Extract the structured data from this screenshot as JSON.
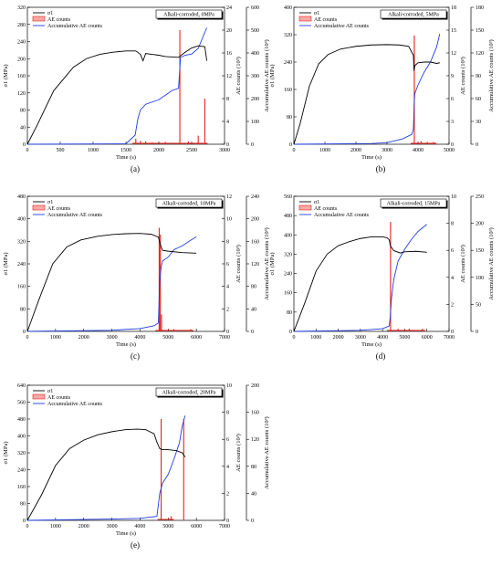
{
  "chart_data": [
    {
      "type": "line",
      "caption": "(a)",
      "condition_label": "Alkali-corroded, 0MPa",
      "legend": [
        "σ1",
        "AE counts",
        "Accumulative AE counts"
      ],
      "xlabel": "Time (s)",
      "ylabel_left": "σ1 (MPa)",
      "ylabel_mid": "AE counts (10³)",
      "ylabel_right": "Accumulative AE counts (10³)",
      "xlim": [
        0,
        3000
      ],
      "xticks": [
        0,
        500,
        1000,
        1500,
        2000,
        2500,
        3000
      ],
      "ylim_left": [
        0,
        320
      ],
      "yticks_left": [
        0,
        40,
        80,
        120,
        160,
        200,
        240,
        280,
        320
      ],
      "ylim_mid": [
        0,
        24
      ],
      "yticks_mid": [
        0,
        4,
        8,
        12,
        16,
        20,
        24
      ],
      "ylim_right": [
        0,
        600
      ],
      "yticks_right": [
        0,
        100,
        200,
        300,
        400,
        500,
        600
      ],
      "stress": {
        "x": [
          0,
          150,
          400,
          700,
          900,
          1100,
          1300,
          1500,
          1650,
          1720,
          1760,
          1800,
          1900,
          2000,
          2100,
          2300,
          2400,
          2500,
          2600,
          2700,
          2730
        ],
        "y": [
          0,
          45,
          125,
          180,
          200,
          210,
          215,
          218,
          218,
          210,
          195,
          212,
          210,
          208,
          205,
          203,
          215,
          225,
          230,
          228,
          195
        ]
      },
      "ae_counts": {
        "x": [
          1650,
          1720,
          1800,
          1900,
          2100,
          2320,
          2450,
          2600,
          2700
        ],
        "y": [
          1.0,
          0.6,
          0.5,
          0.3,
          0.4,
          20.0,
          0.5,
          1.5,
          8.0
        ]
      },
      "accumulative": {
        "x": [
          0,
          1500,
          1640,
          1680,
          1720,
          1800,
          1900,
          2000,
          2100,
          2200,
          2300,
          2330,
          2400,
          2500,
          2600,
          2700,
          2730
        ],
        "y": [
          0,
          2,
          40,
          110,
          150,
          175,
          185,
          195,
          215,
          235,
          245,
          380,
          390,
          395,
          420,
          490,
          510
        ]
      }
    },
    {
      "type": "line",
      "caption": "(b)",
      "condition_label": "Alkali-corroded, 5MPa",
      "legend": [
        "σ1",
        "AE counts",
        "Accumulative AE counts"
      ],
      "xlabel": "Time (s)",
      "ylabel_left": "σ1 (MPa)",
      "ylabel_mid": "AE counts (10³)",
      "ylabel_right": "Accumulative AE counts (10³)",
      "xlim": [
        0,
        5000
      ],
      "xticks": [
        0,
        1000,
        2000,
        3000,
        4000,
        5000
      ],
      "ylim_left": [
        0,
        400
      ],
      "yticks_left": [
        0,
        80,
        160,
        240,
        320,
        400
      ],
      "ylim_mid": [
        0,
        18
      ],
      "yticks_mid": [
        0,
        3,
        6,
        9,
        12,
        15,
        18
      ],
      "ylim_right": [
        0,
        180
      ],
      "yticks_right": [
        0,
        30,
        60,
        90,
        120,
        150,
        180
      ],
      "stress": {
        "x": [
          0,
          200,
          500,
          800,
          1100,
          1500,
          2000,
          2500,
          3000,
          3400,
          3700,
          3850,
          3870,
          3900,
          4000,
          4200,
          4400,
          4600,
          4700
        ],
        "y": [
          0,
          60,
          170,
          235,
          262,
          278,
          286,
          290,
          291,
          290,
          286,
          260,
          215,
          230,
          238,
          240,
          240,
          236,
          238
        ]
      },
      "ae_counts": {
        "x": [
          3880,
          4100,
          4300,
          4500
        ],
        "y": [
          14.3,
          0.4,
          0.3,
          0.3
        ]
      },
      "accumulative": {
        "x": [
          0,
          2500,
          3000,
          3500,
          3800,
          3850,
          3880,
          3900,
          4000,
          4200,
          4400,
          4600,
          4700
        ],
        "y": [
          0,
          1,
          2,
          7,
          13,
          20,
          57,
          67,
          78,
          95,
          108,
          128,
          145
        ]
      }
    },
    {
      "type": "line",
      "caption": "(c)",
      "condition_label": "Alkali-corroded, 10MPa",
      "legend": [
        "σ1",
        "AE counts",
        "Accumulative AE counts"
      ],
      "xlabel": "Time (s)",
      "ylabel_left": "σ1 (MPa)",
      "ylabel_mid": "AE counts (10³)",
      "ylabel_right": "Accumulative AE counts (10³)",
      "xlim": [
        0,
        7000
      ],
      "xticks": [
        0,
        1000,
        2000,
        3000,
        4000,
        5000,
        6000,
        7000
      ],
      "ylim_left": [
        0,
        480
      ],
      "yticks_left": [
        0,
        80,
        160,
        240,
        320,
        400,
        480
      ],
      "ylim_mid": [
        0,
        12
      ],
      "yticks_mid": [
        0,
        2,
        4,
        6,
        8,
        10,
        12
      ],
      "ylim_right": [
        0,
        240
      ],
      "yticks_right": [
        0,
        40,
        80,
        120,
        160,
        200,
        240
      ],
      "stress": {
        "x": [
          0,
          400,
          900,
          1400,
          1900,
          2500,
          3000,
          3500,
          4000,
          4400,
          4650,
          4750,
          4800,
          5000,
          5500,
          6000
        ],
        "y": [
          0,
          110,
          240,
          300,
          325,
          338,
          344,
          347,
          348,
          345,
          335,
          300,
          288,
          285,
          280,
          278
        ]
      },
      "ae_counts": {
        "x": [
          4680,
          4720,
          4760,
          5200,
          5800
        ],
        "y": [
          9.2,
          8.6,
          1.5,
          0.2,
          0.2
        ]
      },
      "accumulative": {
        "x": [
          0,
          3000,
          4000,
          4500,
          4650,
          4700,
          4750,
          4800,
          5000,
          5200,
          5500,
          5800,
          6000
        ],
        "y": [
          0,
          2,
          5,
          10,
          15,
          90,
          115,
          125,
          132,
          145,
          152,
          162,
          168
        ]
      }
    },
    {
      "type": "line",
      "caption": "(d)",
      "condition_label": "Alkali-corroded, 15MPa",
      "legend": [
        "σ1",
        "AE counts",
        "Accumulative AE counts"
      ],
      "xlabel": "Time (s)",
      "ylabel_left": "σ1 (MPa)",
      "ylabel_mid": "AE counts (10³)",
      "ylabel_right": "Accumulative AE counts (10³)",
      "xlim": [
        0,
        7000
      ],
      "xticks": [
        0,
        1000,
        2000,
        3000,
        4000,
        5000,
        6000,
        7000
      ],
      "ylim_left": [
        0,
        560
      ],
      "yticks_left": [
        0,
        80,
        160,
        240,
        320,
        400,
        480,
        560
      ],
      "ylim_mid": [
        0,
        10
      ],
      "yticks_mid": [
        0,
        2,
        4,
        6,
        8,
        10
      ],
      "ylim_right": [
        0,
        250
      ],
      "yticks_right": [
        0,
        50,
        100,
        150,
        200,
        250
      ],
      "stress": {
        "x": [
          0,
          500,
          1000,
          1500,
          2000,
          2500,
          3000,
          3500,
          4000,
          4200,
          4300,
          4350,
          4500,
          4800,
          5000,
          5500,
          6000
        ],
        "y": [
          0,
          120,
          250,
          320,
          355,
          372,
          385,
          392,
          392,
          388,
          380,
          355,
          335,
          325,
          330,
          332,
          328
        ]
      },
      "ae_counts": {
        "x": [
          4360,
          4700,
          5200,
          5800
        ],
        "y": [
          8.1,
          0.2,
          0.2,
          0.2
        ]
      },
      "accumulative": {
        "x": [
          0,
          3000,
          4000,
          4300,
          4350,
          4400,
          4500,
          4700,
          5000,
          5300,
          5600,
          6000
        ],
        "y": [
          0,
          2,
          5,
          10,
          28,
          60,
          95,
          130,
          152,
          170,
          185,
          198
        ]
      }
    },
    {
      "type": "line",
      "caption": "(e)",
      "condition_label": "Alkali-corroded, 20MPa",
      "legend": [
        "σ1",
        "AE counts",
        "Accumulative AE counts"
      ],
      "xlabel": "Time (s)",
      "ylabel_left": "σ1 (MPa)",
      "ylabel_mid": "AE counts (10³)",
      "ylabel_right": "Accumulative AE counts (10³)",
      "xlim": [
        0,
        7000
      ],
      "xticks": [
        0,
        1000,
        2000,
        3000,
        4000,
        5000,
        6000,
        7000
      ],
      "ylim_left": [
        0,
        640
      ],
      "yticks_left": [
        0,
        80,
        160,
        240,
        320,
        400,
        480,
        560,
        640
      ],
      "ylim_mid": [
        0,
        10
      ],
      "yticks_mid": [
        0,
        2,
        4,
        6,
        8,
        10
      ],
      "ylim_right": [
        0,
        200
      ],
      "yticks_right": [
        0,
        40,
        80,
        120,
        160,
        200
      ],
      "stress": {
        "x": [
          0,
          500,
          1000,
          1500,
          2000,
          2500,
          3000,
          3500,
          3900,
          4200,
          4500,
          4600,
          4700,
          4800,
          5000,
          5300,
          5500,
          5600
        ],
        "y": [
          0,
          120,
          260,
          340,
          380,
          405,
          420,
          430,
          432,
          430,
          410,
          370,
          340,
          335,
          335,
          330,
          320,
          300
        ]
      },
      "ae_counts": {
        "x": [
          4750,
          5550,
          5100
        ],
        "y": [
          7.5,
          7.5,
          0.3
        ]
      },
      "accumulative": {
        "x": [
          0,
          3000,
          4000,
          4600,
          4700,
          4800,
          5000,
          5200,
          5400,
          5500,
          5600
        ],
        "y": [
          0,
          2,
          3,
          6,
          40,
          55,
          68,
          90,
          115,
          140,
          155
        ]
      }
    }
  ]
}
